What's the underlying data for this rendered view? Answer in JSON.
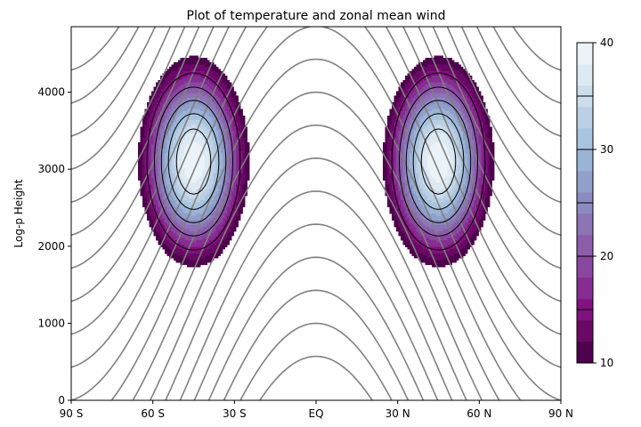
{
  "chart_data": {
    "type": "contour",
    "title": "Plot of temperature and zonal mean wind",
    "xlabel": "",
    "ylabel": "Log-p Height",
    "xlim": [
      -90,
      90
    ],
    "ylim": [
      0,
      4850
    ],
    "x_ticks": [
      {
        "value": -90,
        "label": "90 S"
      },
      {
        "value": -60,
        "label": "60 S"
      },
      {
        "value": -30,
        "label": "30 S"
      },
      {
        "value": 0,
        "label": "EQ"
      },
      {
        "value": 30,
        "label": "30 N"
      },
      {
        "value": 60,
        "label": "60 N"
      },
      {
        "value": 90,
        "label": "90 N"
      }
    ],
    "y_ticks": [
      0,
      1000,
      2000,
      3000,
      4000
    ],
    "filled_field": {
      "description": "zonal mean wind, filled contours, two jets",
      "jet_centers": [
        {
          "lat": -45,
          "height": 3100,
          "max": 40
        },
        {
          "lat": 45,
          "height": 3100,
          "max": 40
        }
      ],
      "fill_levels": [
        10,
        12,
        14,
        16,
        18,
        20,
        22,
        24,
        26,
        28,
        30,
        32,
        34,
        36,
        38,
        40
      ],
      "line_levels": [
        15,
        20,
        25,
        30,
        35
      ],
      "colormap": "BuPu"
    },
    "line_field": {
      "description": "temperature contours (gray lines)",
      "line_color": "#808080"
    },
    "colorbar": {
      "range": [
        10,
        40
      ],
      "ticks": [
        10,
        20,
        30,
        40
      ]
    },
    "grid": false
  }
}
